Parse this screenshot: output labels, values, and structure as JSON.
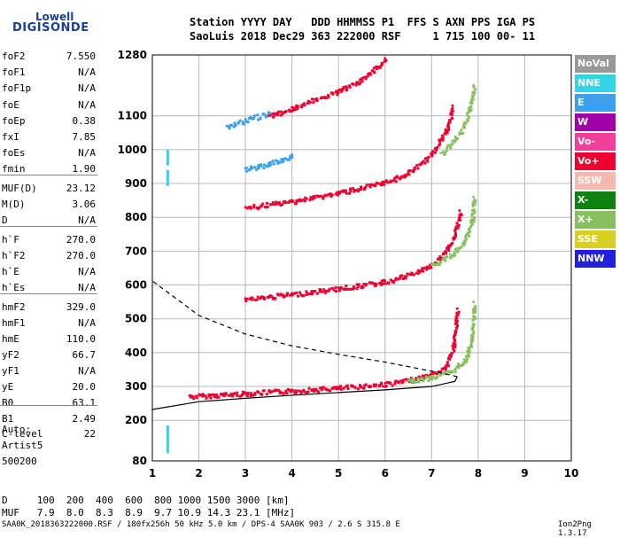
{
  "logo": {
    "line1": "Lowell",
    "line2": "DIGISONDE"
  },
  "header": {
    "line1": "Station YYYY DAY   DDD HHMMSS P1  FFS S AXN PPS IGA PS",
    "line2": "SaoLuis 2018 Dec29 363 222000 RSF     1 715 100 00- 11"
  },
  "params": [
    {
      "label": "foF2",
      "value": "7.550"
    },
    {
      "label": "foF1",
      "value": "N/A"
    },
    {
      "label": "foF1p",
      "value": "N/A"
    },
    {
      "label": "foE",
      "value": "N/A"
    },
    {
      "label": "foEp",
      "value": "0.38"
    },
    {
      "label": "fxI",
      "value": "7.85"
    },
    {
      "label": "foEs",
      "value": "N/A"
    },
    {
      "label": "fmin",
      "value": "1.90"
    },
    {
      "label": "MUF(D)",
      "value": "23.12"
    },
    {
      "label": "M(D)",
      "value": "3.06"
    },
    {
      "label": "D",
      "value": "N/A"
    },
    {
      "label": "h`F",
      "value": "270.0"
    },
    {
      "label": "h`F2",
      "value": "270.0"
    },
    {
      "label": "h`E",
      "value": "N/A"
    },
    {
      "label": "h`Es",
      "value": "N/A"
    },
    {
      "label": "hmF2",
      "value": "329.0"
    },
    {
      "label": "hmF1",
      "value": "N/A"
    },
    {
      "label": "hmE",
      "value": "110.0"
    },
    {
      "label": "yF2",
      "value": "66.7"
    },
    {
      "label": "yF1",
      "value": "N/A"
    },
    {
      "label": "yE",
      "value": "20.0"
    },
    {
      "label": "B0",
      "value": "63.1"
    },
    {
      "label": "B1",
      "value": "2.49"
    },
    {
      "label": "C-level",
      "value": "22"
    }
  ],
  "auto": {
    "line1": "Auto:",
    "line2": "Artist5",
    "line3": "500200"
  },
  "muf_table": {
    "d_row": "D     100  200  400  600  800 1000 1500 3000 [km]",
    "muf_row": "MUF   7.9  8.0  8.3  8.9  9.7 10.9 14.3 23.1 [MHz]"
  },
  "footer": "SAA0K_2018363222000.RSF / 180fx256h 50 kHz 5.0 km / DPS-4 SAA0K 903 / 2.6 S 315.8 E",
  "version": "Ion2Png 1.3.17",
  "legend": [
    {
      "label": "NoVal",
      "color": "#999999"
    },
    {
      "label": "NNE",
      "color": "#33d4e8"
    },
    {
      "label": "E",
      "color": "#3ca0f0"
    },
    {
      "label": "W",
      "color": "#a000a8"
    },
    {
      "label": "Vo-",
      "color": "#f0409a"
    },
    {
      "label": "Vo+",
      "color": "#f00030"
    },
    {
      "label": "SSW",
      "color": "#f5b8b0"
    },
    {
      "label": "X-",
      "color": "#108010"
    },
    {
      "label": "X+",
      "color": "#88c060"
    },
    {
      "label": "SSE",
      "color": "#d8d020"
    },
    {
      "label": "NNW",
      "color": "#2020e0"
    }
  ],
  "chart_data": {
    "type": "scatter",
    "x_range": [
      1,
      10
    ],
    "y_range": [
      80,
      1280
    ],
    "x_ticks": [
      1,
      2,
      3,
      4,
      5,
      6,
      7,
      8,
      9,
      10
    ],
    "y_ticks": [
      80,
      200,
      300,
      400,
      500,
      600,
      700,
      800,
      900,
      1000,
      1100,
      1280
    ],
    "grid": true,
    "legend_position": "right",
    "traces": [
      {
        "name": "Vo+",
        "points": [
          [
            1.8,
            273
          ],
          [
            2.5,
            278
          ],
          [
            3.0,
            282
          ],
          [
            4.0,
            290
          ],
          [
            5.0,
            298
          ],
          [
            6.0,
            310
          ],
          [
            6.5,
            320
          ],
          [
            7.0,
            338
          ],
          [
            7.3,
            360
          ],
          [
            7.45,
            420
          ],
          [
            7.55,
            530
          ]
        ]
      },
      {
        "name": "X+",
        "points": [
          [
            6.5,
            318
          ],
          [
            7.0,
            330
          ],
          [
            7.4,
            345
          ],
          [
            7.7,
            380
          ],
          [
            7.85,
            440
          ],
          [
            7.9,
            550
          ]
        ]
      },
      {
        "name": "Vo+",
        "points": [
          [
            3.0,
            560
          ],
          [
            4.0,
            575
          ],
          [
            5.0,
            592
          ],
          [
            6.0,
            612
          ],
          [
            6.5,
            632
          ],
          [
            7.0,
            662
          ],
          [
            7.3,
            700
          ],
          [
            7.5,
            760
          ],
          [
            7.6,
            820
          ]
        ]
      },
      {
        "name": "X+",
        "points": [
          [
            7.0,
            660
          ],
          [
            7.4,
            690
          ],
          [
            7.7,
            730
          ],
          [
            7.85,
            790
          ],
          [
            7.9,
            860
          ]
        ]
      },
      {
        "name": "Vo+",
        "points": [
          [
            3.0,
            830
          ],
          [
            4.0,
            850
          ],
          [
            5.0,
            875
          ],
          [
            6.0,
            905
          ],
          [
            6.5,
            935
          ],
          [
            7.0,
            990
          ],
          [
            7.3,
            1060
          ],
          [
            7.45,
            1130
          ]
        ]
      },
      {
        "name": "X+",
        "points": [
          [
            7.2,
            990
          ],
          [
            7.6,
            1050
          ],
          [
            7.8,
            1120
          ],
          [
            7.9,
            1190
          ]
        ]
      },
      {
        "name": "Vo+",
        "points": [
          [
            3.5,
            1100
          ],
          [
            4.0,
            1125
          ],
          [
            5.0,
            1175
          ],
          [
            5.5,
            1210
          ],
          [
            6.0,
            1270
          ]
        ]
      },
      {
        "name": "E",
        "points": [
          [
            2.6,
            1070
          ],
          [
            3.0,
            1090
          ],
          [
            3.5,
            1110
          ]
        ]
      },
      {
        "name": "E",
        "points": [
          [
            3.0,
            945
          ],
          [
            3.5,
            960
          ],
          [
            4.0,
            985
          ]
        ]
      }
    ],
    "profile": [
      [
        1,
        232
      ],
      [
        2,
        255
      ],
      [
        3,
        265
      ],
      [
        4,
        274
      ],
      [
        5,
        282
      ],
      [
        6,
        290
      ],
      [
        7,
        300
      ],
      [
        7.5,
        315
      ],
      [
        7.55,
        329
      ],
      [
        7.2,
        340
      ],
      [
        6,
        372
      ],
      [
        5,
        395
      ],
      [
        4,
        420
      ],
      [
        3,
        455
      ],
      [
        2,
        510
      ],
      [
        1,
        612
      ]
    ]
  }
}
